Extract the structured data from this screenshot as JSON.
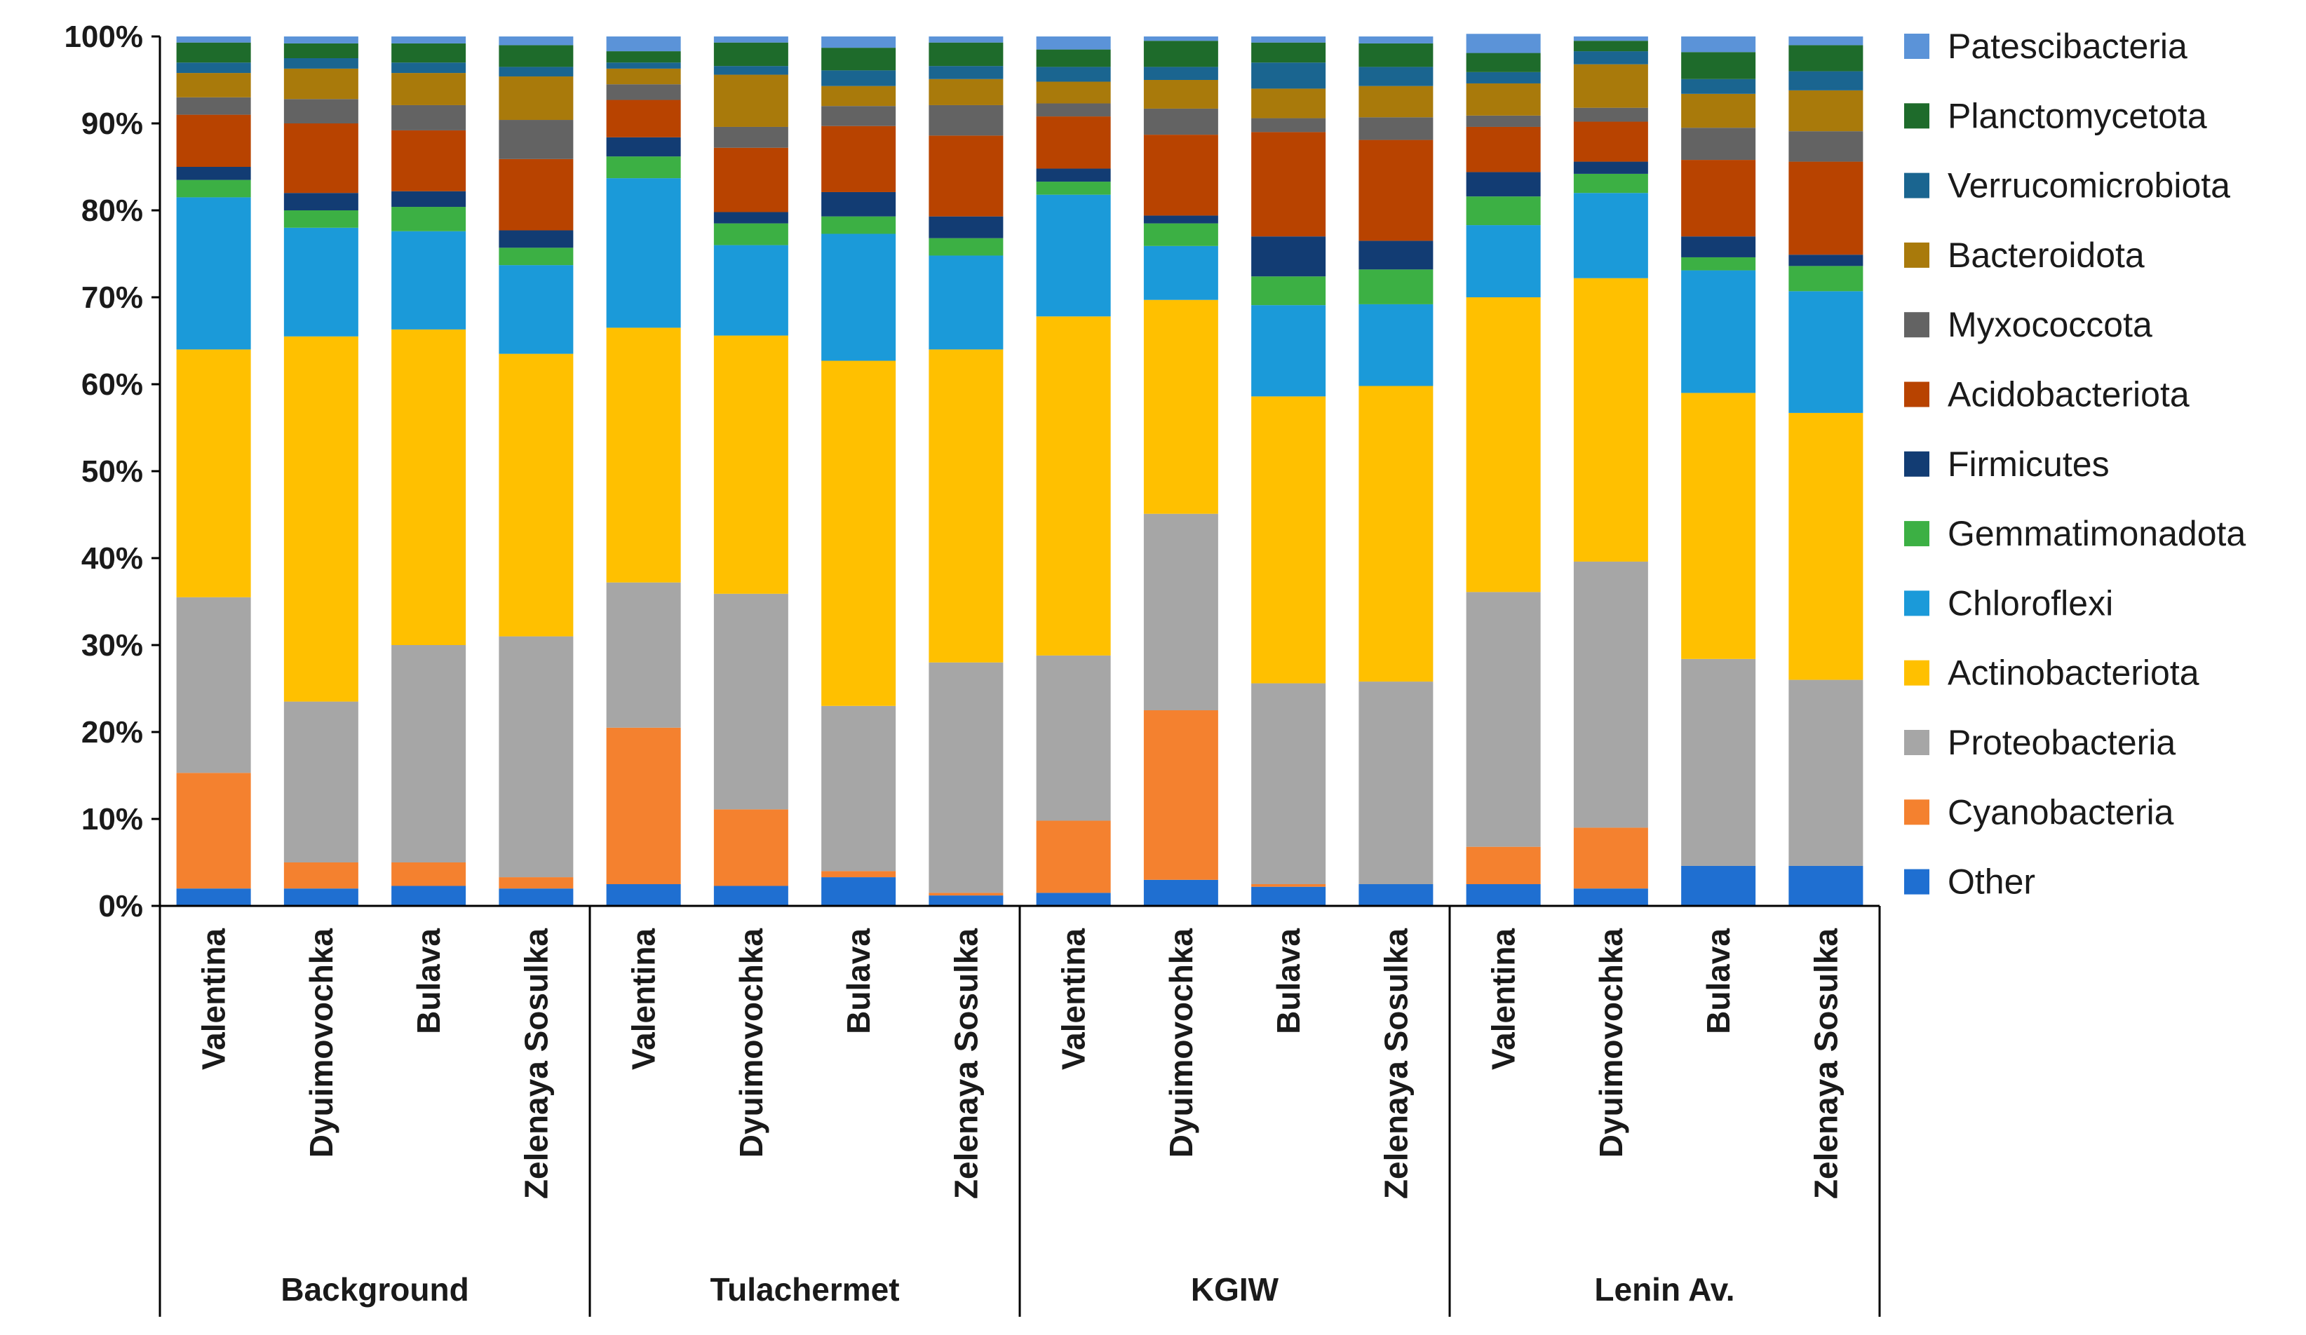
{
  "chart_data": {
    "type": "bar",
    "stacked": true,
    "percent": true,
    "title": "",
    "xlabel": "",
    "ylabel": "",
    "ylim": [
      0,
      100
    ],
    "yticks": [
      "0%",
      "10%",
      "20%",
      "30%",
      "40%",
      "50%",
      "60%",
      "70%",
      "80%",
      "90%",
      "100%"
    ],
    "legend_position": "right",
    "groups": [
      {
        "name": "Background",
        "categories": [
          "Valentina",
          "Dyuimovochka",
          "Bulava",
          "Zelenaya Sosulka"
        ]
      },
      {
        "name": "Tulachermet",
        "categories": [
          "Valentina",
          "Dyuimovochka",
          "Bulava",
          "Zelenaya Sosulka"
        ]
      },
      {
        "name": "KGIW",
        "categories": [
          "Valentina",
          "Dyuimovochka",
          "Bulava",
          "Zelenaya Sosulka"
        ]
      },
      {
        "name": "Lenin Av.",
        "categories": [
          "Valentina",
          "Dyuimovochka",
          "Bulava",
          "Zelenaya Sosulka"
        ]
      }
    ],
    "categories": [
      "Valentina",
      "Dyuimovochka",
      "Bulava",
      "Zelenaya Sosulka",
      "Valentina",
      "Dyuimovochka",
      "Bulava",
      "Zelenaya Sosulka",
      "Valentina",
      "Dyuimovochka",
      "Bulava",
      "Zelenaya Sosulka",
      "Valentina",
      "Dyuimovochka",
      "Bulava",
      "Zelenaya Sosulka"
    ],
    "series": [
      {
        "name": "Other",
        "color": "#1f6fd1",
        "values": [
          2.0,
          2.0,
          2.3,
          2.0,
          2.5,
          2.3,
          3.3,
          1.2,
          1.5,
          3.0,
          2.2,
          2.5,
          2.5,
          2.0,
          4.6,
          4.6
        ]
      },
      {
        "name": "Cyanobacteria",
        "color": "#f4812f",
        "values": [
          13.3,
          3.0,
          2.7,
          1.3,
          18.0,
          8.8,
          0.7,
          0.3,
          8.3,
          19.5,
          0.3,
          0.0,
          4.3,
          7.0,
          0.0,
          0.0
        ]
      },
      {
        "name": "Proteobacteria",
        "color": "#a6a6a6",
        "values": [
          20.2,
          18.5,
          25.0,
          27.7,
          16.7,
          24.8,
          19.0,
          26.5,
          19.0,
          22.6,
          23.1,
          23.3,
          29.3,
          30.6,
          23.8,
          21.4
        ]
      },
      {
        "name": "Actinobacteriota",
        "color": "#ffc000",
        "values": [
          28.5,
          42.0,
          36.3,
          32.5,
          29.3,
          29.7,
          39.7,
          36.0,
          39.0,
          24.6,
          33.0,
          34.0,
          33.9,
          32.6,
          30.6,
          30.7
        ]
      },
      {
        "name": "Chloroflexi",
        "color": "#1b9ad9",
        "values": [
          17.5,
          12.5,
          11.3,
          10.2,
          17.2,
          10.4,
          14.6,
          10.8,
          14.0,
          6.2,
          10.5,
          9.4,
          8.3,
          9.8,
          14.1,
          14.0
        ]
      },
      {
        "name": "Gemmatimonadota",
        "color": "#3cb044",
        "values": [
          2.0,
          2.0,
          2.8,
          2.0,
          2.5,
          2.5,
          2.0,
          2.0,
          1.5,
          2.6,
          3.3,
          4.0,
          3.3,
          2.2,
          1.5,
          2.9
        ]
      },
      {
        "name": "Firmicutes",
        "color": "#123c73",
        "values": [
          1.5,
          2.0,
          1.8,
          2.0,
          2.2,
          1.3,
          2.8,
          2.5,
          1.5,
          0.9,
          4.6,
          3.3,
          2.8,
          1.4,
          2.4,
          1.3
        ]
      },
      {
        "name": "Acidobacteriota",
        "color": "#b84300",
        "values": [
          6.0,
          8.0,
          7.0,
          8.2,
          4.3,
          7.4,
          7.6,
          9.3,
          6.0,
          9.3,
          12.0,
          11.6,
          5.2,
          4.6,
          8.8,
          10.7
        ]
      },
      {
        "name": "Myxococcota",
        "color": "#636363",
        "values": [
          2.0,
          2.8,
          2.9,
          4.5,
          1.8,
          2.4,
          2.3,
          3.5,
          1.5,
          3.0,
          1.6,
          2.6,
          1.3,
          1.6,
          3.7,
          3.5
        ]
      },
      {
        "name": "Bacteroidota",
        "color": "#a97a0b",
        "values": [
          2.8,
          3.5,
          3.7,
          5.0,
          1.8,
          6.0,
          2.3,
          3.0,
          2.5,
          3.3,
          3.4,
          3.6,
          3.7,
          5.0,
          3.9,
          4.7
        ]
      },
      {
        "name": "Verrucomicrobiota",
        "color": "#1a6590",
        "values": [
          1.2,
          1.2,
          1.2,
          1.1,
          0.7,
          1.0,
          1.8,
          1.5,
          1.7,
          1.5,
          3.0,
          2.2,
          1.3,
          1.5,
          1.7,
          2.2
        ]
      },
      {
        "name": "Planctomycetota",
        "color": "#1e6b2b",
        "values": [
          2.3,
          1.7,
          2.2,
          2.5,
          1.3,
          2.7,
          2.6,
          2.7,
          2.0,
          3.0,
          2.3,
          2.7,
          2.2,
          1.2,
          3.1,
          3.0
        ]
      },
      {
        "name": "Patescibacteria",
        "color": "#5b93d8",
        "values": [
          0.7,
          0.8,
          0.8,
          1.0,
          1.7,
          0.7,
          1.3,
          0.7,
          1.5,
          0.5,
          0.7,
          0.8,
          2.2,
          0.5,
          1.8,
          1.0
        ]
      }
    ]
  }
}
